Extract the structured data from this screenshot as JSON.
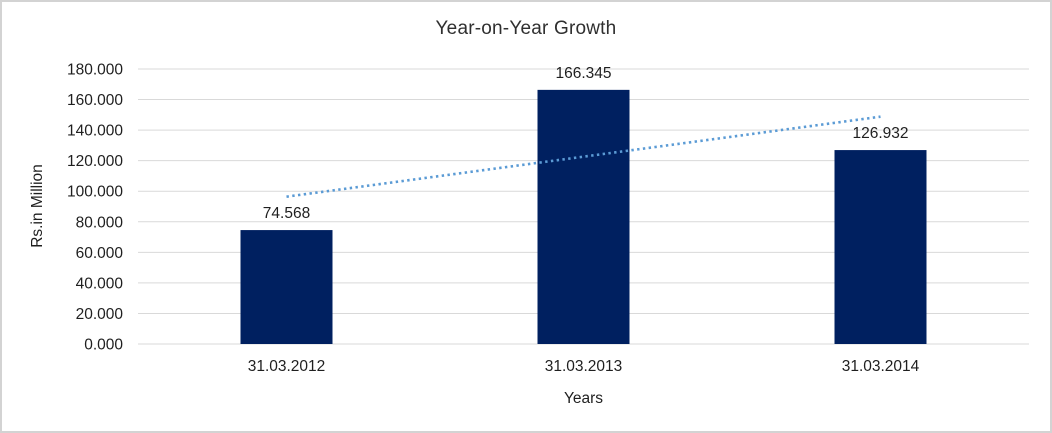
{
  "chart_data": {
    "type": "bar",
    "title": "Year-on-Year Growth",
    "xlabel": "Years",
    "ylabel": "Rs.in Million",
    "categories": [
      "31.03.2012",
      "31.03.2013",
      "31.03.2014"
    ],
    "values": [
      74.568,
      166.345,
      126.932
    ],
    "data_labels": [
      "74.568",
      "166.345",
      "126.932"
    ],
    "y_ticks": [
      "180.000",
      "160.000",
      "140.000",
      "120.000",
      "100.000",
      "80.000",
      "60.000",
      "40.000",
      "20.000",
      "0.000"
    ],
    "ylim": [
      0,
      180
    ],
    "y_step": 20,
    "grid": true,
    "legend": "none",
    "bar_color": "#002060",
    "trendline": {
      "type": "linear",
      "style": "dotted",
      "color": "#5b9bd5",
      "endpoints": [
        96.433,
        148.797
      ]
    }
  },
  "colors": {
    "canvas_border": "#d3d3d3",
    "gridline": "#d9d9d9",
    "text": "#1f1f1f",
    "title_text": "#2f2f2f"
  }
}
